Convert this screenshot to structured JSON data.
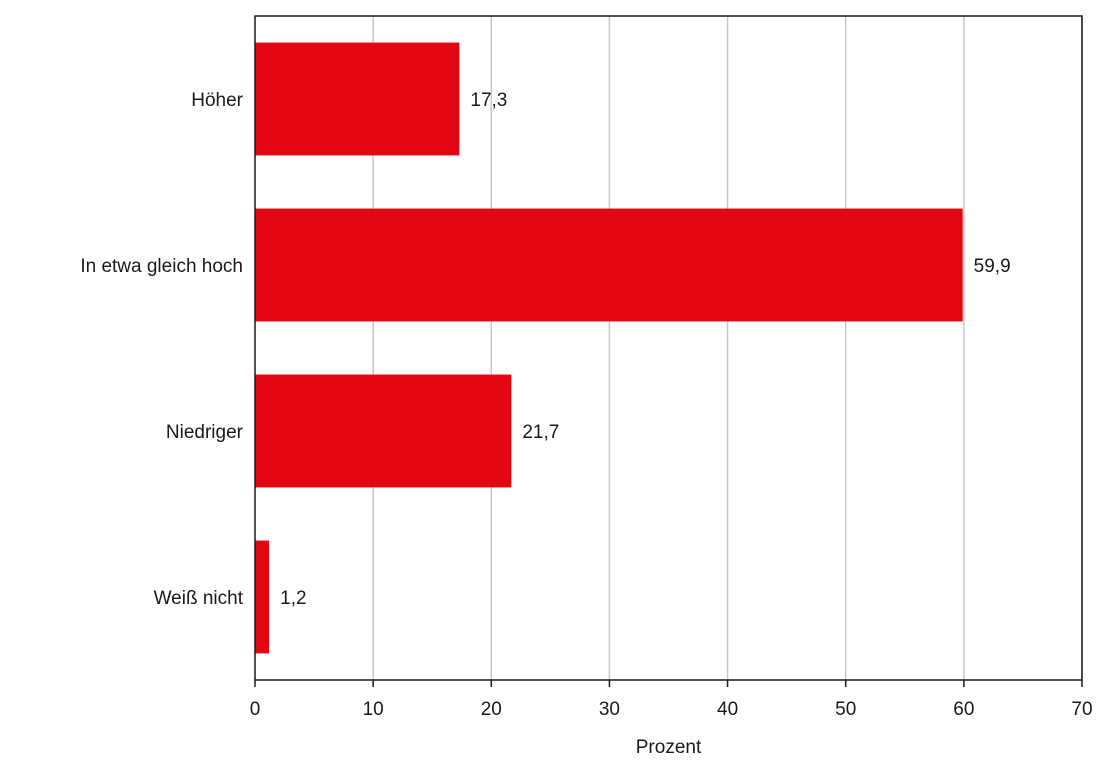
{
  "chart_data": {
    "type": "bar",
    "orientation": "horizontal",
    "categories": [
      "Höher",
      "In etwa gleich hoch",
      "Niedriger",
      "Weiß nicht"
    ],
    "values": [
      17.3,
      59.9,
      21.7,
      1.2
    ],
    "value_labels": [
      "17,3",
      "59,9",
      "21,7",
      "1,2"
    ],
    "title": "",
    "xlabel": "Prozent",
    "ylabel": "",
    "xlim": [
      0,
      70
    ],
    "xticks": [
      0,
      10,
      20,
      30,
      40,
      50,
      60,
      70
    ],
    "xtick_labels": [
      "0",
      "10",
      "20",
      "30",
      "40",
      "50",
      "60",
      "70"
    ],
    "grid": "vertical",
    "legend": "none",
    "bar_color": "#e20613",
    "grid_color": "#c8c8c8",
    "axis_color": "#1a1a1a"
  }
}
